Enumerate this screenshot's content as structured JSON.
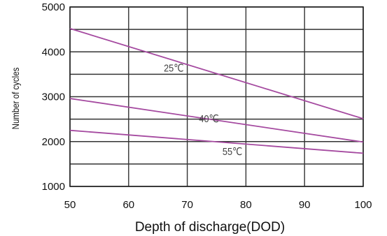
{
  "chart_data": {
    "type": "line",
    "title": "",
    "xlabel": "Depth of discharge(DOD)",
    "ylabel": "Number of cycles",
    "xlim": [
      50,
      100
    ],
    "ylim": [
      1000,
      5000
    ],
    "x_ticks": [
      50,
      60,
      70,
      80,
      90,
      100
    ],
    "y_ticks": [
      1000,
      2000,
      3000,
      4000,
      5000
    ],
    "grid": true,
    "legend": "none",
    "line_color": "#a54aa0",
    "series": [
      {
        "name": "25℃",
        "x": [
          50,
          100
        ],
        "y": [
          4520,
          2510
        ]
      },
      {
        "name": "40℃",
        "x": [
          50,
          100
        ],
        "y": [
          2960,
          1990
        ]
      },
      {
        "name": "55℃",
        "x": [
          50,
          100
        ],
        "y": [
          2250,
          1740
        ]
      }
    ]
  }
}
